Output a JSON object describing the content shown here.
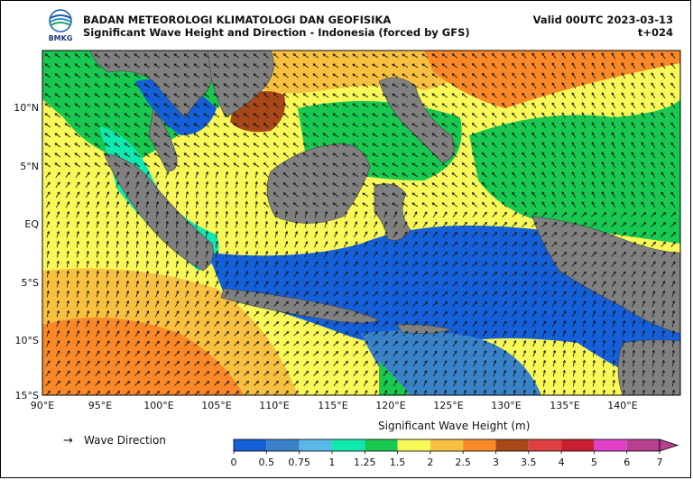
{
  "header": {
    "agency": "BADAN METEOROLOGI KLIMATOLOGI DAN GEOFISIKA",
    "subtitle": "Significant Wave Height and Direction - Indonesia (forced by GFS)",
    "valid": "Valid 00UTC 2023-03-13",
    "lead": "t+024",
    "logo_text": "BMKG"
  },
  "map": {
    "lon_labels": [
      "90°E",
      "95°E",
      "100°E",
      "105°E",
      "110°E",
      "115°E",
      "120°E",
      "125°E",
      "130°E",
      "135°E",
      "140°E"
    ],
    "lat_labels": [
      "10°N",
      "5°N",
      "EQ",
      "5°S",
      "10°S",
      "15°S"
    ],
    "lon_range": [
      90,
      145
    ],
    "lat_range": [
      -15,
      14.5
    ],
    "land_color": "#808080"
  },
  "legend": {
    "arrow_symbol": "→",
    "arrow_label": "Wave Direction"
  },
  "colorbar": {
    "title": "Significant Wave Height (m)",
    "ticks": [
      "0",
      "0.5",
      "0.75",
      "1",
      "1.25",
      "1.5",
      "2",
      "2.5",
      "3",
      "3.5",
      "4",
      "5",
      "6",
      "7"
    ],
    "colors": [
      "#1560d8",
      "#3a82c8",
      "#5ab8e6",
      "#10e8b0",
      "#18c850",
      "#f8f858",
      "#f8c040",
      "#f88828",
      "#a84818",
      "#e04040",
      "#c82030",
      "#e040c8",
      "#b84090"
    ]
  }
}
